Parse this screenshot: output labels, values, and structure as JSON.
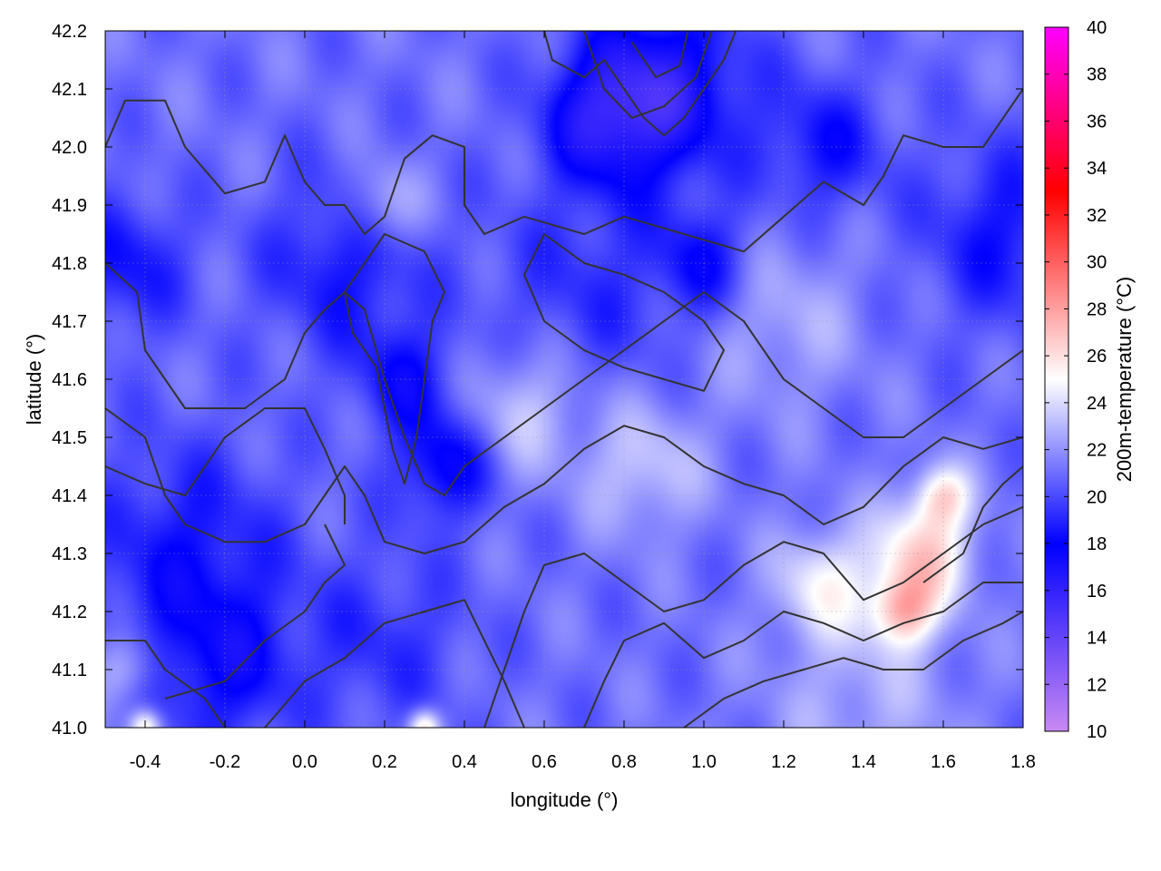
{
  "chart_data": {
    "type": "heatmap",
    "xlabel": "longitude (°)",
    "ylabel": "latitude (°)",
    "colorbar_label": "200m-temperature (°C)",
    "xlim": [
      -0.5,
      1.8
    ],
    "ylim": [
      41.0,
      42.2
    ],
    "clim": [
      10,
      40
    ],
    "x_ticks": [
      -0.4,
      -0.2,
      0.0,
      0.2,
      0.4,
      0.6,
      0.8,
      1.0,
      1.2,
      1.4,
      1.6,
      1.8
    ],
    "x_tick_labels": [
      "-0.4",
      "-0.2",
      "0.0",
      "0.2",
      "0.4",
      "0.6",
      "0.8",
      "1.0",
      "1.2",
      "1.4",
      "1.6",
      "1.8"
    ],
    "y_ticks": [
      41.0,
      41.1,
      41.2,
      41.3,
      41.4,
      41.5,
      41.6,
      41.7,
      41.8,
      41.9,
      42.0,
      42.1,
      42.2
    ],
    "y_tick_labels": [
      "41.0",
      "41.1",
      "41.2",
      "41.3",
      "41.4",
      "41.5",
      "41.6",
      "41.7",
      "41.8",
      "41.9",
      "42.0",
      "42.1",
      "42.2"
    ],
    "colorbar_ticks": [
      10,
      12,
      14,
      16,
      18,
      20,
      22,
      24,
      26,
      28,
      30,
      32,
      34,
      36,
      38,
      40
    ],
    "colorbar_tick_labels": [
      "10",
      "12",
      "14",
      "16",
      "18",
      "20",
      "22",
      "24",
      "26",
      "28",
      "30",
      "32",
      "34",
      "36",
      "38",
      "40"
    ],
    "colormap": [
      {
        "value": 10,
        "color": "#c889f2"
      },
      {
        "value": 18,
        "color": "#0000ff"
      },
      {
        "value": 25,
        "color": "#ffffff"
      },
      {
        "value": 33,
        "color": "#ff0000"
      },
      {
        "value": 40,
        "color": "#ff00ff"
      }
    ],
    "grid": true,
    "contour_color": "#333333",
    "temperature_field_features": [
      {
        "lon": 0.9,
        "lat": 42.1,
        "temp": 16,
        "radius": 0.2
      },
      {
        "lon": 0.75,
        "lat": 42.05,
        "temp": 17,
        "radius": 0.15
      },
      {
        "lon": 1.3,
        "lat": 42.0,
        "temp": 18,
        "radius": 0.15
      },
      {
        "lon": 1.75,
        "lat": 41.85,
        "temp": 18,
        "radius": 0.2
      },
      {
        "lon": 0.1,
        "lat": 41.8,
        "temp": 18,
        "radius": 0.2
      },
      {
        "lon": 0.25,
        "lat": 41.6,
        "temp": 18,
        "radius": 0.12
      },
      {
        "lon": 0.35,
        "lat": 41.45,
        "temp": 17,
        "radius": 0.12
      },
      {
        "lon": -0.45,
        "lat": 41.8,
        "temp": 18,
        "radius": 0.15
      },
      {
        "lon": -0.3,
        "lat": 41.3,
        "temp": 18,
        "radius": 0.25
      },
      {
        "lon": -0.2,
        "lat": 41.1,
        "temp": 18,
        "radius": 0.18
      },
      {
        "lon": 0.2,
        "lat": 41.15,
        "temp": 19,
        "radius": 0.2
      },
      {
        "lon": 0.7,
        "lat": 41.75,
        "temp": 19,
        "radius": 0.25
      },
      {
        "lon": 1.0,
        "lat": 41.8,
        "temp": 18,
        "radius": 0.12
      },
      {
        "lon": 0.2,
        "lat": 41.9,
        "temp": 24,
        "radius": 0.1
      },
      {
        "lon": 0.55,
        "lat": 41.55,
        "temp": 24,
        "radius": 0.15
      },
      {
        "lon": 0.85,
        "lat": 41.45,
        "temp": 24,
        "radius": 0.15
      },
      {
        "lon": 1.2,
        "lat": 41.7,
        "temp": 23,
        "radius": 0.2
      },
      {
        "lon": 1.3,
        "lat": 41.25,
        "temp": 25,
        "radius": 0.12
      },
      {
        "lon": 1.55,
        "lat": 41.3,
        "temp": 27,
        "radius": 0.12
      },
      {
        "lon": 1.5,
        "lat": 41.2,
        "temp": 27,
        "radius": 0.08
      },
      {
        "lon": 1.6,
        "lat": 41.4,
        "temp": 26,
        "radius": 0.07
      },
      {
        "lon": 1.4,
        "lat": 41.05,
        "temp": 23,
        "radius": 0.25
      },
      {
        "lon": -0.4,
        "lat": 41.0,
        "temp": 27,
        "radius": 0.04
      },
      {
        "lon": 0.3,
        "lat": 41.0,
        "temp": 27,
        "radius": 0.04
      },
      {
        "lon": -0.45,
        "lat": 41.1,
        "temp": 24,
        "radius": 0.08
      }
    ],
    "contours": [
      [
        [
          -0.5,
          42.0
        ],
        [
          -0.45,
          42.08
        ],
        [
          -0.35,
          42.08
        ],
        [
          -0.3,
          42.0
        ],
        [
          -0.2,
          41.92
        ],
        [
          -0.1,
          41.94
        ],
        [
          -0.05,
          42.02
        ],
        [
          0.0,
          41.94
        ],
        [
          0.05,
          41.9
        ],
        [
          0.1,
          41.9
        ],
        [
          0.15,
          41.85
        ],
        [
          0.2,
          41.88
        ],
        [
          0.25,
          41.98
        ],
        [
          0.32,
          42.02
        ],
        [
          0.4,
          42.0
        ],
        [
          0.4,
          41.9
        ],
        [
          0.45,
          41.85
        ],
        [
          0.55,
          41.88
        ],
        [
          0.7,
          41.85
        ],
        [
          0.8,
          41.88
        ],
        [
          0.95,
          41.85
        ],
        [
          1.1,
          41.82
        ],
        [
          1.2,
          41.88
        ],
        [
          1.3,
          41.94
        ],
        [
          1.4,
          41.9
        ],
        [
          1.45,
          41.95
        ],
        [
          1.5,
          42.02
        ],
        [
          1.6,
          42.0
        ],
        [
          1.7,
          42.0
        ],
        [
          1.8,
          42.1
        ]
      ],
      [
        [
          -0.5,
          41.8
        ],
        [
          -0.42,
          41.75
        ],
        [
          -0.4,
          41.65
        ],
        [
          -0.3,
          41.55
        ],
        [
          -0.15,
          41.55
        ],
        [
          -0.05,
          41.6
        ],
        [
          0.0,
          41.68
        ],
        [
          0.05,
          41.72
        ],
        [
          0.1,
          41.75
        ],
        [
          0.15,
          41.72
        ],
        [
          0.2,
          41.6
        ],
        [
          0.25,
          41.5
        ],
        [
          0.3,
          41.42
        ],
        [
          0.35,
          41.4
        ],
        [
          0.4,
          41.45
        ],
        [
          0.5,
          41.5
        ],
        [
          0.6,
          41.55
        ],
        [
          0.7,
          41.6
        ],
        [
          0.8,
          41.65
        ],
        [
          0.9,
          41.7
        ],
        [
          1.0,
          41.75
        ],
        [
          1.1,
          41.7
        ],
        [
          1.2,
          41.6
        ],
        [
          1.3,
          41.55
        ],
        [
          1.4,
          41.5
        ],
        [
          1.5,
          41.5
        ],
        [
          1.6,
          41.55
        ],
        [
          1.7,
          41.6
        ],
        [
          1.8,
          41.65
        ]
      ],
      [
        [
          -0.5,
          41.55
        ],
        [
          -0.4,
          41.5
        ],
        [
          -0.35,
          41.4
        ],
        [
          -0.3,
          41.35
        ],
        [
          -0.2,
          41.32
        ],
        [
          -0.1,
          41.32
        ],
        [
          0.0,
          41.35
        ],
        [
          0.05,
          41.4
        ],
        [
          0.1,
          41.45
        ],
        [
          0.15,
          41.4
        ],
        [
          0.2,
          41.32
        ],
        [
          0.3,
          41.3
        ],
        [
          0.4,
          41.32
        ],
        [
          0.5,
          41.38
        ],
        [
          0.6,
          41.42
        ],
        [
          0.7,
          41.48
        ],
        [
          0.8,
          41.52
        ],
        [
          0.9,
          41.5
        ],
        [
          1.0,
          41.45
        ],
        [
          1.1,
          41.42
        ],
        [
          1.2,
          41.4
        ],
        [
          1.3,
          41.35
        ],
        [
          1.4,
          41.38
        ],
        [
          1.5,
          41.45
        ],
        [
          1.6,
          41.5
        ],
        [
          1.7,
          41.48
        ],
        [
          1.8,
          41.5
        ]
      ],
      [
        [
          -0.5,
          41.45
        ],
        [
          -0.4,
          41.42
        ],
        [
          -0.3,
          41.4
        ],
        [
          -0.25,
          41.45
        ],
        [
          -0.2,
          41.5
        ],
        [
          -0.1,
          41.55
        ],
        [
          0.0,
          41.55
        ],
        [
          0.05,
          41.48
        ],
        [
          0.1,
          41.4
        ],
        [
          0.1,
          41.35
        ]
      ],
      [
        [
          -0.5,
          41.15
        ],
        [
          -0.4,
          41.15
        ],
        [
          -0.35,
          41.1
        ],
        [
          -0.25,
          41.05
        ],
        [
          -0.2,
          41.0
        ]
      ],
      [
        [
          -0.1,
          41.0
        ],
        [
          0.0,
          41.08
        ],
        [
          0.1,
          41.12
        ],
        [
          0.2,
          41.18
        ],
        [
          0.3,
          41.2
        ],
        [
          0.4,
          41.22
        ],
        [
          0.45,
          41.15
        ],
        [
          0.5,
          41.08
        ],
        [
          0.55,
          41.0
        ]
      ],
      [
        [
          0.45,
          41.0
        ],
        [
          0.5,
          41.1
        ],
        [
          0.55,
          41.2
        ],
        [
          0.6,
          41.28
        ],
        [
          0.7,
          41.3
        ],
        [
          0.8,
          41.25
        ],
        [
          0.9,
          41.2
        ],
        [
          1.0,
          41.22
        ],
        [
          1.1,
          41.28
        ],
        [
          1.2,
          41.32
        ],
        [
          1.3,
          41.3
        ],
        [
          1.4,
          41.22
        ],
        [
          1.5,
          41.25
        ],
        [
          1.6,
          41.3
        ],
        [
          1.7,
          41.35
        ],
        [
          1.8,
          41.38
        ]
      ],
      [
        [
          0.7,
          41.0
        ],
        [
          0.75,
          41.08
        ],
        [
          0.8,
          41.15
        ],
        [
          0.9,
          41.18
        ],
        [
          1.0,
          41.12
        ],
        [
          1.1,
          41.15
        ],
        [
          1.2,
          41.2
        ],
        [
          1.3,
          41.18
        ],
        [
          1.4,
          41.15
        ],
        [
          1.5,
          41.18
        ],
        [
          1.6,
          41.2
        ],
        [
          1.7,
          41.25
        ],
        [
          1.8,
          41.25
        ]
      ],
      [
        [
          0.95,
          41.0
        ],
        [
          1.05,
          41.05
        ],
        [
          1.15,
          41.08
        ],
        [
          1.25,
          41.1
        ],
        [
          1.35,
          41.12
        ],
        [
          1.45,
          41.1
        ],
        [
          1.55,
          41.1
        ],
        [
          1.65,
          41.15
        ],
        [
          1.75,
          41.18
        ],
        [
          1.8,
          41.2
        ]
      ],
      [
        [
          0.6,
          42.2
        ],
        [
          0.62,
          42.15
        ],
        [
          0.7,
          42.12
        ],
        [
          0.75,
          42.15
        ],
        [
          0.8,
          42.1
        ],
        [
          0.85,
          42.05
        ],
        [
          0.9,
          42.02
        ],
        [
          0.95,
          42.05
        ],
        [
          1.0,
          42.1
        ],
        [
          1.05,
          42.15
        ],
        [
          1.08,
          42.2
        ]
      ],
      [
        [
          0.7,
          42.2
        ],
        [
          0.75,
          42.1
        ],
        [
          0.82,
          42.05
        ],
        [
          0.9,
          42.07
        ],
        [
          0.98,
          42.12
        ],
        [
          1.02,
          42.2
        ]
      ],
      [
        [
          0.82,
          42.18
        ],
        [
          0.88,
          42.12
        ],
        [
          0.94,
          42.14
        ],
        [
          0.96,
          42.2
        ]
      ],
      [
        [
          0.1,
          41.75
        ],
        [
          0.12,
          41.68
        ],
        [
          0.18,
          41.62
        ],
        [
          0.2,
          41.55
        ],
        [
          0.22,
          41.48
        ],
        [
          0.25,
          41.42
        ],
        [
          0.28,
          41.5
        ],
        [
          0.3,
          41.6
        ],
        [
          0.32,
          41.7
        ],
        [
          0.35,
          41.75
        ],
        [
          0.3,
          41.82
        ],
        [
          0.2,
          41.85
        ],
        [
          0.1,
          41.75
        ]
      ],
      [
        [
          0.6,
          41.85
        ],
        [
          0.7,
          41.8
        ],
        [
          0.8,
          41.78
        ],
        [
          0.9,
          41.75
        ],
        [
          1.0,
          41.7
        ],
        [
          1.05,
          41.65
        ],
        [
          1.0,
          41.58
        ],
        [
          0.9,
          41.6
        ],
        [
          0.8,
          41.62
        ],
        [
          0.7,
          41.65
        ],
        [
          0.6,
          41.7
        ],
        [
          0.55,
          41.78
        ],
        [
          0.6,
          41.85
        ]
      ],
      [
        [
          -0.35,
          41.05
        ],
        [
          -0.2,
          41.08
        ],
        [
          -0.1,
          41.15
        ],
        [
          0.0,
          41.2
        ],
        [
          0.05,
          41.25
        ],
        [
          0.1,
          41.28
        ],
        [
          0.05,
          41.35
        ]
      ],
      [
        [
          1.55,
          41.25
        ],
        [
          1.65,
          41.3
        ],
        [
          1.7,
          41.38
        ],
        [
          1.75,
          41.42
        ],
        [
          1.8,
          41.45
        ]
      ]
    ]
  }
}
